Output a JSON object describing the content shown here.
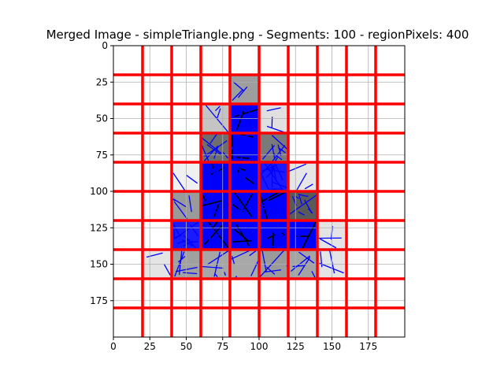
{
  "chart_data": {
    "type": "heatmap",
    "title": "Merged Image - simpleTriangle.png - Segments: 100 - regionPixels: 400",
    "xlabel": "",
    "ylabel": "",
    "xlim": [
      0,
      200
    ],
    "ylim": [
      200,
      0
    ],
    "y_inverted": true,
    "grid": true,
    "x_ticks": [
      0,
      25,
      50,
      75,
      100,
      125,
      150,
      175
    ],
    "y_ticks": [
      0,
      25,
      50,
      75,
      100,
      125,
      150,
      175
    ],
    "region_size": 20,
    "red_lines_x": [
      20,
      40,
      60,
      80,
      100,
      120,
      140,
      160,
      180
    ],
    "red_lines_y": [
      20,
      40,
      60,
      80,
      100,
      120,
      140,
      160,
      180
    ],
    "cells": [
      {
        "col": 4,
        "row": 1,
        "shade": "#9e9e9e",
        "segments": 3
      },
      {
        "col": 3,
        "row": 2,
        "shade": "#c4c4c4",
        "segments": 3
      },
      {
        "col": 4,
        "row": 2,
        "shade": "#0000ff",
        "segments": 10
      },
      {
        "col": 5,
        "row": 2,
        "shade": "#e0e0e0",
        "segments": 3
      },
      {
        "col": 3,
        "row": 3,
        "shade": "#6e6e6e",
        "segments": 8
      },
      {
        "col": 4,
        "row": 3,
        "shade": "#0000ff",
        "segments": 12
      },
      {
        "col": 5,
        "row": 3,
        "shade": "#7a7a7a",
        "segments": 8
      },
      {
        "col": 2,
        "row": 4,
        "shade": "#f0f0f0",
        "segments": 2
      },
      {
        "col": 3,
        "row": 4,
        "shade": "#0000ff",
        "segments": 12
      },
      {
        "col": 4,
        "row": 4,
        "shade": "#0000ff",
        "segments": 12
      },
      {
        "col": 5,
        "row": 4,
        "shade": "#1a1aff",
        "segments": 12
      },
      {
        "col": 6,
        "row": 4,
        "shade": "#e6e6e6",
        "segments": 3
      },
      {
        "col": 2,
        "row": 5,
        "shade": "#9a9a9a",
        "segments": 4
      },
      {
        "col": 3,
        "row": 5,
        "shade": "#0000ff",
        "segments": 12
      },
      {
        "col": 4,
        "row": 5,
        "shade": "#0000ff",
        "segments": 12
      },
      {
        "col": 5,
        "row": 5,
        "shade": "#0000ff",
        "segments": 12
      },
      {
        "col": 6,
        "row": 5,
        "shade": "#5a5a5a",
        "segments": 8
      },
      {
        "col": 2,
        "row": 6,
        "shade": "#1a1aff",
        "segments": 10
      },
      {
        "col": 3,
        "row": 6,
        "shade": "#0000ff",
        "segments": 12
      },
      {
        "col": 4,
        "row": 6,
        "shade": "#0000ff",
        "segments": 12
      },
      {
        "col": 5,
        "row": 6,
        "shade": "#0000ff",
        "segments": 12
      },
      {
        "col": 6,
        "row": 6,
        "shade": "#0000ff",
        "segments": 12
      },
      {
        "col": 7,
        "row": 6,
        "shade": "#e4e4e4",
        "segments": 3
      },
      {
        "col": 1,
        "row": 7,
        "shade": "#e4e4e4",
        "segments": 2
      },
      {
        "col": 2,
        "row": 7,
        "shade": "#a0a0a0",
        "segments": 5
      },
      {
        "col": 3,
        "row": 7,
        "shade": "#a6a6a6",
        "segments": 5
      },
      {
        "col": 4,
        "row": 7,
        "shade": "#a8a8a8",
        "segments": 5
      },
      {
        "col": 5,
        "row": 7,
        "shade": "#9a9a9a",
        "segments": 5
      },
      {
        "col": 6,
        "row": 7,
        "shade": "#a4a4a4",
        "segments": 5
      },
      {
        "col": 7,
        "row": 7,
        "shade": "#e4e4e4",
        "segments": 3
      }
    ],
    "colors": {
      "red_lines": "#ff0000",
      "segments": "#0000ff",
      "dark_segments": "#000000",
      "grid": "#b0b0b0",
      "background_pixel": "#ffffff"
    }
  }
}
